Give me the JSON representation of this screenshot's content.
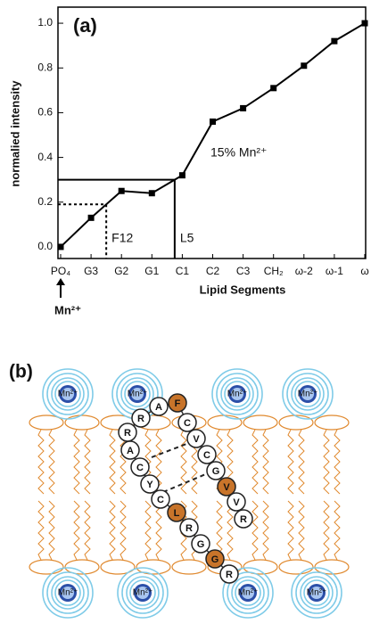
{
  "chart_data": {
    "type": "line",
    "title": "(a)",
    "y_label": "normalied intensity",
    "x_label": "Lipid Segments",
    "categories": [
      "PO₄",
      "G3",
      "G2",
      "G1",
      "C1",
      "C2",
      "C3",
      "CH₂",
      "ω-2",
      "ω-1",
      "ω"
    ],
    "values": [
      0.0,
      0.13,
      0.25,
      0.24,
      0.32,
      0.56,
      0.62,
      0.71,
      0.81,
      0.92,
      1.0
    ],
    "color": "#000000",
    "ylim": [
      -0.052,
      1.072
    ],
    "yticks": [
      {
        "value": 0,
        "label": "0.0"
      },
      0.2,
      0.4,
      0.6,
      0.8,
      {
        "value": 1,
        "label": "1.0"
      }
    ],
    "series_label": "15% Mn²⁺",
    "annotations": [
      {
        "text": "L5",
        "value": 0.3,
        "line_style": "solid"
      },
      {
        "text": "F12",
        "value": 0.19,
        "line_style": "dotted"
      }
    ],
    "marker_label": "Mn²⁺"
  },
  "diagram": {
    "title": "(b)",
    "ions": [
      {
        "label": "Mn²⁺"
      },
      {
        "label": "Mn²⁺"
      },
      {
        "label": "Mn²⁺"
      },
      {
        "label": "Mn²⁺"
      },
      {
        "label": "Mn²⁺"
      },
      {
        "label": "Mn²⁺"
      },
      {
        "label": "Mn²⁺"
      },
      {
        "label": "Mn²⁺"
      }
    ],
    "residues": [
      {
        "label": "F",
        "color": "#c8742a"
      },
      {
        "label": "A",
        "color": "#ffffff"
      },
      {
        "label": "R",
        "color": "#ffffff"
      },
      {
        "label": "R",
        "color": "#ffffff"
      },
      {
        "label": "A",
        "color": "#ffffff"
      },
      {
        "label": "C",
        "color": "#ffffff"
      },
      {
        "label": "Y",
        "color": "#ffffff"
      },
      {
        "label": "C",
        "color": "#ffffff"
      },
      {
        "label": "L",
        "color": "#c8742a"
      },
      {
        "label": "R",
        "color": "#ffffff"
      },
      {
        "label": "G",
        "color": "#ffffff"
      },
      {
        "label": "G",
        "color": "#c8742a"
      },
      {
        "label": "R",
        "color": "#ffffff"
      },
      {
        "label": "C",
        "color": "#ffffff"
      },
      {
        "label": "V",
        "color": "#ffffff"
      },
      {
        "label": "C",
        "color": "#ffffff"
      },
      {
        "label": "G",
        "color": "#ffffff"
      },
      {
        "label": "V",
        "color": "#c8742a"
      },
      {
        "label": "V",
        "color": "#ffffff"
      },
      {
        "label": "R",
        "color": "#ffffff"
      }
    ]
  }
}
